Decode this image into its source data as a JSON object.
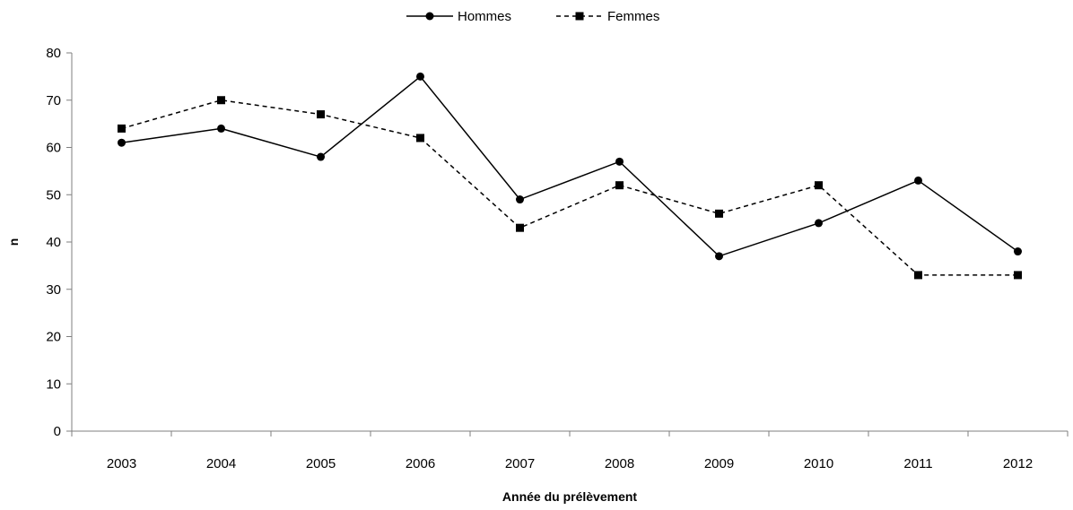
{
  "chart_data": {
    "type": "line",
    "title": "",
    "xlabel": "Année du prélèvement",
    "ylabel": "n",
    "categories": [
      "2003",
      "2004",
      "2005",
      "2006",
      "2007",
      "2008",
      "2009",
      "2010",
      "2011",
      "2012"
    ],
    "ylim": [
      0,
      80
    ],
    "yticks": [
      "0",
      "10",
      "20",
      "30",
      "40",
      "50",
      "60",
      "70",
      "80"
    ],
    "grid": false,
    "legend_position": "top-center",
    "series": [
      {
        "name": "Hommes",
        "values": [
          61,
          64,
          58,
          75,
          49,
          57,
          37,
          44,
          53,
          38
        ],
        "line_style": "solid",
        "marker": "circle",
        "color": "#000000"
      },
      {
        "name": "Femmes",
        "values": [
          64,
          70,
          67,
          62,
          43,
          52,
          46,
          52,
          33,
          33
        ],
        "line_style": "dashed",
        "marker": "square",
        "color": "#000000"
      }
    ]
  }
}
